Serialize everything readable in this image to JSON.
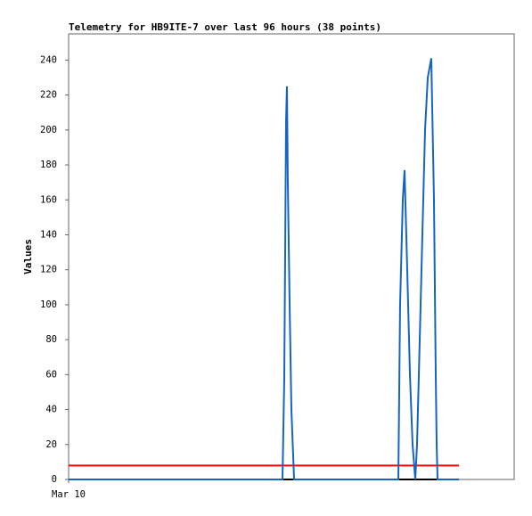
{
  "chart_data": {
    "type": "line",
    "title": "Telemetry for HB9ITE-7 over last 96 hours (38 points)",
    "y_label": "Values",
    "x": [
      0,
      8.26,
      17.86,
      27.46,
      37.06,
      42.82,
      46.08,
      46.46,
      46.66,
      46.85,
      47.04,
      47.23,
      47.62,
      48.0,
      48.58,
      58.18,
      62.02,
      65.86,
      69.7,
      71.04,
      71.42,
      72.0,
      72.38,
      72.96,
      73.54,
      74.11,
      74.69,
      75.07,
      75.46,
      76.22,
      76.8,
      77.38,
      78.14,
      78.72,
      79.1,
      79.3,
      79.49,
      84.1
    ],
    "series": [
      {
        "color": "#1565c0",
        "values": [
          0,
          0,
          0,
          0,
          0,
          0,
          0,
          57,
          130,
          205,
          225,
          170,
          100,
          40,
          0,
          0,
          0,
          0,
          0,
          0,
          100,
          160,
          177,
          120,
          60,
          20,
          0,
          20,
          60,
          140,
          200,
          230,
          241,
          160,
          60,
          20,
          0,
          0
        ]
      },
      {
        "color": "#ff0000",
        "values": [
          8,
          8,
          8,
          8,
          8,
          8,
          8,
          8,
          8,
          8,
          8,
          8,
          8,
          8,
          8,
          8,
          8,
          8,
          8,
          8,
          8,
          8,
          8,
          8,
          8,
          8,
          8,
          8,
          8,
          8,
          8,
          8,
          8,
          8,
          8,
          8,
          8,
          8
        ]
      },
      {
        "color": "#000000",
        "values": [
          0,
          0,
          0,
          0,
          0,
          0,
          0,
          0,
          0,
          0,
          0,
          0,
          0,
          0,
          0,
          0,
          0,
          0,
          0,
          0,
          0,
          0,
          0,
          0,
          0,
          0,
          0,
          0,
          0,
          0,
          0,
          0,
          0,
          0,
          0,
          0,
          0,
          0
        ]
      }
    ],
    "xlim": [
      0,
      96
    ],
    "xticks": [
      {
        "value": 0,
        "label": "Mar 10"
      }
    ],
    "ylim": [
      0,
      255
    ],
    "yticks": [
      0,
      20,
      40,
      60,
      80,
      100,
      120,
      140,
      160,
      180,
      200,
      220,
      240
    ]
  }
}
